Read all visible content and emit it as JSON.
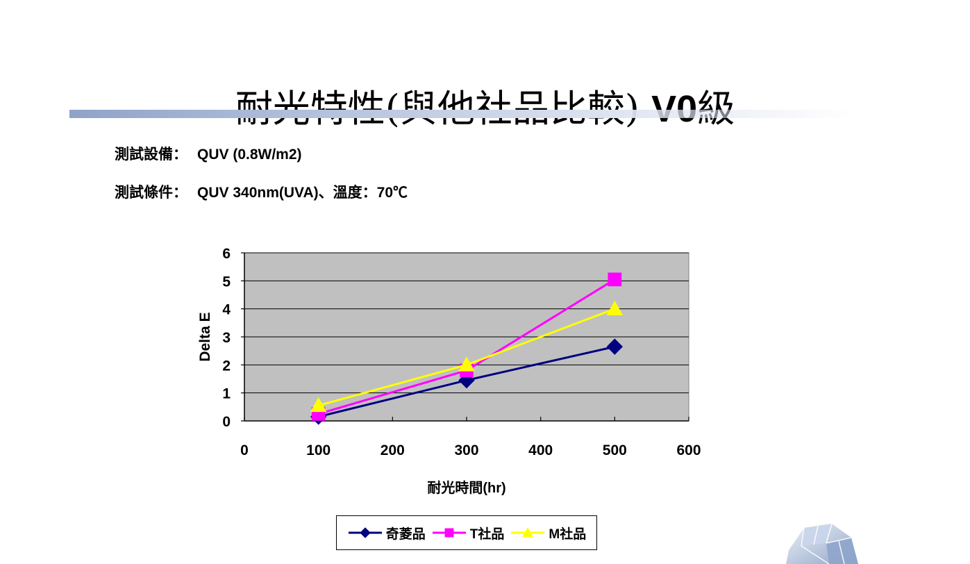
{
  "slide": {
    "title_main": "耐光特性(與他社品比較)",
    "title_grade": "V0",
    "title_suffix": "級",
    "info": [
      {
        "label": "測試設備：",
        "value": "QUV (0.8W/m2)"
      },
      {
        "label": "測試條件：",
        "value": "QUV 340nm(UVA)、溫度：70℃"
      }
    ]
  },
  "chart_data": {
    "type": "line",
    "title": "",
    "xlabel": "耐光時間(hr)",
    "ylabel": "Delta E",
    "xlim": [
      0,
      600
    ],
    "ylim": [
      0,
      6
    ],
    "xticks": [
      "0",
      "100",
      "200",
      "300",
      "400",
      "500",
      "600"
    ],
    "yticks": [
      "0",
      "1",
      "2",
      "3",
      "4",
      "5",
      "6"
    ],
    "grid": "horizontal",
    "plot_background": "#c0c0c0",
    "legend_position": "bottom",
    "series": [
      {
        "name": "奇菱品",
        "color": "#000080",
        "marker": "diamond",
        "x": [
          100,
          300,
          500
        ],
        "y": [
          0.15,
          1.45,
          2.65
        ]
      },
      {
        "name": "T社品",
        "color": "#ff00ff",
        "marker": "square",
        "x": [
          100,
          300,
          500
        ],
        "y": [
          0.25,
          1.8,
          5.05
        ]
      },
      {
        "name": "M社品",
        "color": "#ffff00",
        "marker": "triangle",
        "x": [
          100,
          300,
          500
        ],
        "y": [
          0.55,
          2.0,
          4.0
        ]
      }
    ]
  }
}
